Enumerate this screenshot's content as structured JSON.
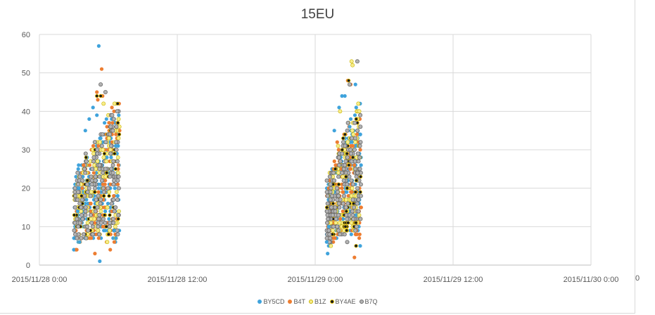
{
  "chart_data": {
    "type": "scatter",
    "title": "15EU",
    "ylim": [
      0,
      60
    ],
    "yticks": [
      0,
      10,
      20,
      30,
      40,
      50,
      60
    ],
    "xlim": [
      "2015/11/28 0:00",
      "2015/11/30 0:00"
    ],
    "xticks": [
      "2015/11/28 0:00",
      "2015/11/28 12:00",
      "2015/11/29 0:00",
      "2015/11/29 12:00",
      "2015/11/30 0:00"
    ],
    "xtick_cut_label": "0",
    "grid": true,
    "legend_position": "bottom",
    "clusters": [
      {
        "start": "2015/11/28 3:00",
        "end": "2015/11/28 7:00"
      },
      {
        "start": "2015/11/29 1:00",
        "end": "2015/11/29 4:00"
      }
    ],
    "series": [
      {
        "name": "BY5CD",
        "color": "#3fa3dc",
        "points": [
          [
            "2015/11/28 3:00",
            4
          ],
          [
            "2015/11/28 3:20",
            14
          ],
          [
            "2015/11/28 3:25",
            26
          ],
          [
            "2015/11/28 3:30",
            6
          ],
          [
            "2015/11/28 4:00",
            35
          ],
          [
            "2015/11/28 4:20",
            38
          ],
          [
            "2015/11/28 4:40",
            41
          ],
          [
            "2015/11/28 5:00",
            39
          ],
          [
            "2015/11/28 5:10",
            57
          ],
          [
            "2015/11/28 5:15",
            1
          ],
          [
            "2015/11/28 5:40",
            37
          ],
          [
            "2015/11/28 6:30",
            9
          ],
          [
            "2015/11/28 6:40",
            7
          ],
          [
            "2015/11/29 1:00",
            6
          ],
          [
            "2015/11/29 1:05",
            3
          ],
          [
            "2015/11/29 1:10",
            10
          ],
          [
            "2015/11/29 1:40",
            35
          ],
          [
            "2015/11/29 2:05",
            41
          ],
          [
            "2015/11/29 2:20",
            44
          ],
          [
            "2015/11/29 2:35",
            44
          ],
          [
            "2015/11/29 3:00",
            36
          ],
          [
            "2015/11/29 3:30",
            47
          ],
          [
            "2015/11/29 3:55",
            5
          ]
        ]
      },
      {
        "name": "B4T",
        "color": "#ed7d31",
        "points": [
          [
            "2015/11/28 3:15",
            4
          ],
          [
            "2015/11/28 3:50",
            26
          ],
          [
            "2015/11/28 4:30",
            7
          ],
          [
            "2015/11/28 4:50",
            3
          ],
          [
            "2015/11/28 5:00",
            45
          ],
          [
            "2015/11/28 5:05",
            43
          ],
          [
            "2015/11/28 5:25",
            51
          ],
          [
            "2015/11/28 5:30",
            44
          ],
          [
            "2015/11/28 6:10",
            4
          ],
          [
            "2015/11/29 1:55",
            32
          ],
          [
            "2015/11/29 2:25",
            19
          ],
          [
            "2015/11/29 2:50",
            48
          ],
          [
            "2015/11/29 3:05",
            47
          ],
          [
            "2015/11/29 3:25",
            2
          ],
          [
            "2015/11/29 3:50",
            7
          ]
        ]
      },
      {
        "name": "B1Z",
        "color": "#f5e04a",
        "points": [
          [
            "2015/11/28 4:30",
            12
          ],
          [
            "2015/11/28 5:35",
            42
          ],
          [
            "2015/11/28 5:50",
            27
          ],
          [
            "2015/11/29 2:10",
            40
          ],
          [
            "2015/11/29 3:10",
            53
          ],
          [
            "2015/11/29 3:15",
            52
          ],
          [
            "2015/11/29 3:45",
            42
          ],
          [
            "2015/11/29 3:50",
            40
          ]
        ]
      },
      {
        "name": "BY4AE",
        "color": "#1a1a1a",
        "points": [
          [
            "2015/11/28 3:40",
            18
          ],
          [
            "2015/11/28 4:10",
            22
          ],
          [
            "2015/11/28 5:00",
            44
          ],
          [
            "2015/11/28 5:20",
            44
          ],
          [
            "2015/11/29 1:45",
            25
          ],
          [
            "2015/11/29 2:55",
            48
          ],
          [
            "2015/11/29 3:35",
            22
          ]
        ]
      },
      {
        "name": "B7Q",
        "color": "#a5a5a5",
        "points": [
          [
            "2015/11/28 5:20",
            47
          ],
          [
            "2015/11/28 5:45",
            45
          ],
          [
            "2015/11/28 6:20",
            39
          ],
          [
            "2015/11/29 3:00",
            47
          ],
          [
            "2015/11/29 3:40",
            53
          ]
        ]
      }
    ]
  }
}
